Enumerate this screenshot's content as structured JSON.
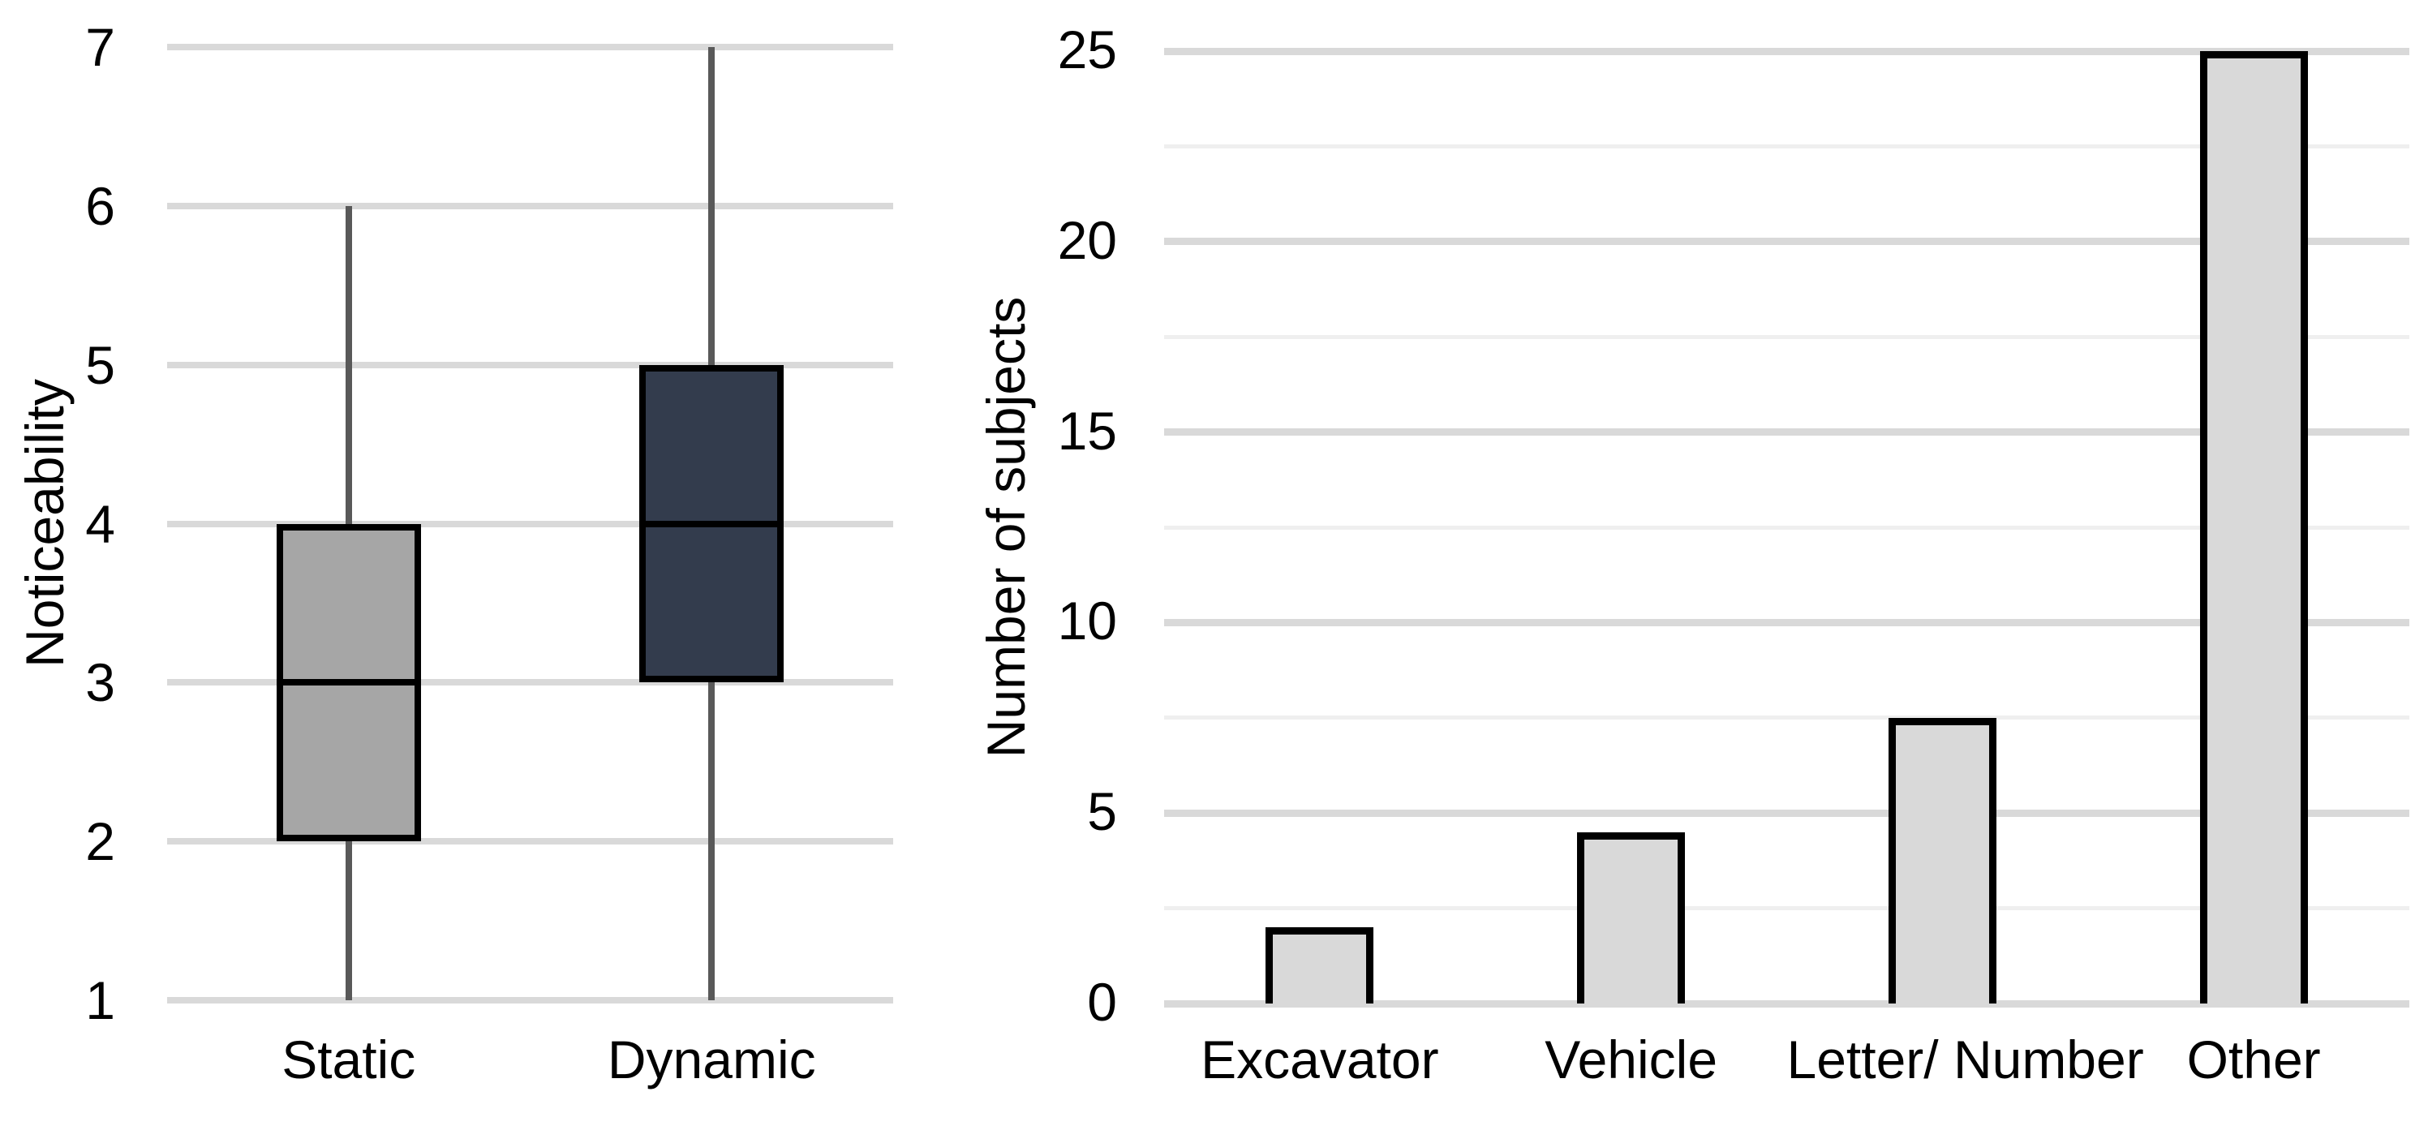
{
  "colors": {
    "background": "#ffffff",
    "text": "#000000",
    "box_border": "#000000",
    "whisker": "#595959",
    "grid_major": "#d9d9d9",
    "grid_minor": "#efefef",
    "box_static_fill": "#a6a6a6",
    "box_dynamic_fill": "#333c4d",
    "bar_fill": "#d9d9d9"
  },
  "chart_data": [
    {
      "type": "box",
      "title": "",
      "ylabel": "Noticeability",
      "xlabel": "",
      "ylim": [
        1,
        7
      ],
      "ytick_step": 1,
      "yticks": [
        "1",
        "2",
        "3",
        "4",
        "5",
        "6",
        "7"
      ],
      "categories": [
        "Static",
        "Dynamic"
      ],
      "grid": "horizontal major gridlines only",
      "legend": "none",
      "series": [
        {
          "name": "Static",
          "whisker_low": 1,
          "q1": 2,
          "median": 3,
          "q3": 4,
          "whisker_high": 6,
          "fill_key": "box_static_fill"
        },
        {
          "name": "Dynamic",
          "whisker_low": 1,
          "q1": 3,
          "median": 4,
          "q3": 5,
          "whisker_high": 7,
          "fill_key": "box_dynamic_fill"
        }
      ]
    },
    {
      "type": "bar",
      "title": "",
      "ylabel": "Number of subjects",
      "xlabel": "",
      "ylim": [
        0,
        25
      ],
      "ytick_major_step": 5,
      "ytick_minor_step": 2.5,
      "yticks_major": [
        "0",
        "5",
        "10",
        "15",
        "20",
        "25"
      ],
      "categories": [
        "Excavator",
        "Vehicle",
        "Letter/ Number",
        "Other"
      ],
      "values": [
        2,
        4.5,
        7.5,
        25
      ],
      "grid": "horizontal major and minor gridlines",
      "legend": "none"
    }
  ]
}
